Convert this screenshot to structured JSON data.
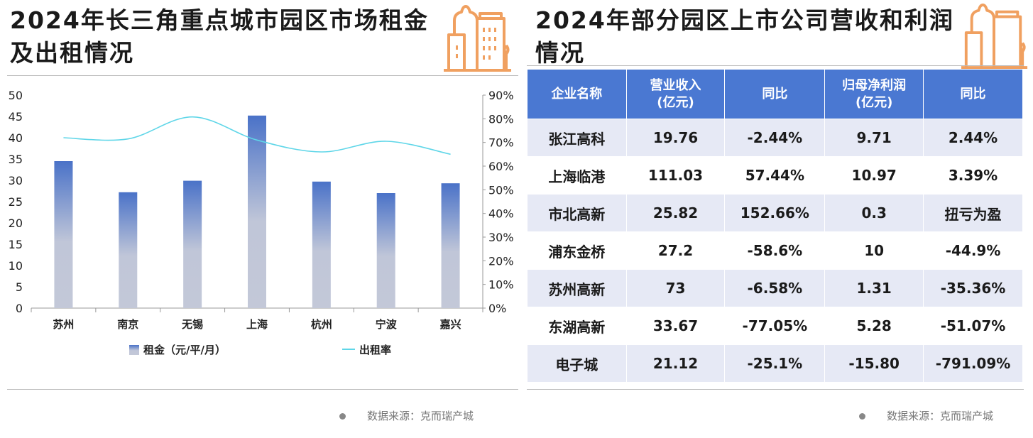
{
  "left": {
    "title": "2024年长三角重点城市园区市场租金及出租情况",
    "source": "数据来源：克而瑞产城"
  },
  "right": {
    "title": "2024年部分园区上市公司营收和利润情况",
    "source": "数据来源：克而瑞产城"
  },
  "icons": {
    "header": "city-buildings-icon",
    "source": "bullet-dot-icon"
  },
  "colors": {
    "bar_top": "#4a72c8",
    "bar_bottom": "#c3c8d8",
    "line": "#5fd6e8",
    "icon": "#f0a060",
    "table_header": "#4a78d2",
    "row_alt": "#e6e9f5"
  },
  "chart_data": {
    "type": "bar",
    "categories": [
      "苏州",
      "南京",
      "无锡",
      "上海",
      "杭州",
      "宁波",
      "嘉兴"
    ],
    "series": [
      {
        "name": "租金（元/平/月）",
        "type": "bar",
        "axis": "left",
        "values": [
          34.5,
          27.2,
          29.9,
          45.2,
          29.7,
          27.0,
          29.3
        ]
      },
      {
        "name": "出租率",
        "type": "line",
        "axis": "right",
        "values": [
          72,
          71.5,
          80.8,
          71,
          66,
          70.5,
          65
        ]
      }
    ],
    "ylim": [
      0,
      50
    ],
    "yticks": [
      "0",
      "5",
      "10",
      "15",
      "20",
      "25",
      "30",
      "35",
      "40",
      "45",
      "50"
    ],
    "y2lim": [
      0,
      90
    ],
    "y2ticks": [
      "0%",
      "10%",
      "20%",
      "30%",
      "40%",
      "50%",
      "60%",
      "70%",
      "80%",
      "90%"
    ],
    "grid": false,
    "legend": "bottom"
  },
  "table": {
    "headers": [
      [
        "企业名称",
        ""
      ],
      [
        "营业收入",
        "(亿元)"
      ],
      [
        "同比",
        ""
      ],
      [
        "归母净利润",
        "(亿元)"
      ],
      [
        "同比",
        ""
      ]
    ],
    "rows": [
      [
        "张江高科",
        "19.76",
        "-2.44%",
        "9.71",
        "2.44%"
      ],
      [
        "上海临港",
        "111.03",
        "57.44%",
        "10.97",
        "3.39%"
      ],
      [
        "市北高新",
        "25.82",
        "152.66%",
        "0.3",
        "扭亏为盈"
      ],
      [
        "浦东金桥",
        "27.2",
        "-58.6%",
        "10",
        "-44.9%"
      ],
      [
        "苏州高新",
        "73",
        "-6.58%",
        "1.31",
        "-35.36%"
      ],
      [
        "东湖高新",
        "33.67",
        "-77.05%",
        "5.28",
        "-51.07%"
      ],
      [
        "电子城",
        "21.12",
        "-25.1%",
        "-15.80",
        "-791.09%"
      ]
    ]
  }
}
